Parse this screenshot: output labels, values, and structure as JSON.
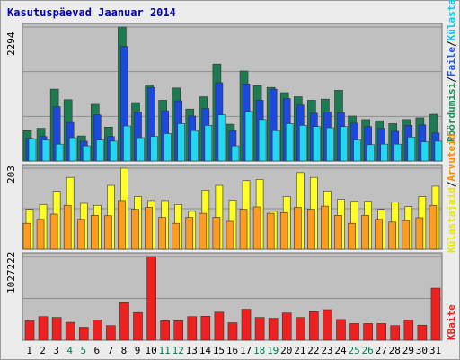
{
  "title": "Kasutuspäevad Jaanuar 2014",
  "panels": {
    "top_max": "2294",
    "mid_max": "203",
    "bot_max": "1027222"
  },
  "legend": {
    "top": [
      {
        "label": "Pöördumisi",
        "color": "#1e8e5a"
      },
      {
        "label": "/",
        "color": "#000000"
      },
      {
        "label": "Faile",
        "color": "#2255dd"
      },
      {
        "label": "/",
        "color": "#000000"
      },
      {
        "label": "Külastajaid",
        "color": "#00ccee"
      }
    ],
    "mid": [
      {
        "label": "Külastajaid",
        "color": "#e6e600"
      },
      {
        "label": "/",
        "color": "#000000"
      },
      {
        "label": "Arvuteid",
        "color": "#ff8800"
      }
    ],
    "bot": [
      {
        "label": "KBaite",
        "color": "#ee2222"
      }
    ]
  },
  "colors": {
    "hits": "#1e7a50",
    "files": "#1c48e0",
    "pages": "#22d8f0",
    "visits": "#ffff22",
    "sites": "#ff9b1e",
    "kbytes": "#ee2020",
    "panel_bg": "#c0c0c0",
    "grid": "#8e8e8e",
    "weekend_label": "#007a55"
  },
  "chart_data": {
    "type": "bar",
    "title": "Kasutuspäevad Jaanuar 2014",
    "categories": [
      "1",
      "2",
      "3",
      "4",
      "5",
      "6",
      "7",
      "8",
      "9",
      "10",
      "11",
      "12",
      "13",
      "14",
      "15",
      "16",
      "17",
      "18",
      "19",
      "20",
      "21",
      "22",
      "23",
      "24",
      "25",
      "26",
      "27",
      "28",
      "29",
      "30",
      "31"
    ],
    "weekend_days": [
      "4",
      "5",
      "11",
      "12",
      "18",
      "19",
      "25",
      "26"
    ],
    "panels": [
      {
        "name": "top",
        "ymax": 2294,
        "series": [
          {
            "name": "Pöördumisi",
            "values": [
              520,
              560,
              1230,
              1050,
              430,
              970,
              580,
              2294,
              1000,
              1300,
              1040,
              1250,
              890,
              1100,
              1660,
              630,
              1540,
              1290,
              1260,
              1170,
              1100,
              1040,
              1060,
              1210,
              770,
              710,
              690,
              640,
              710,
              740,
              800
            ]
          },
          {
            "name": "Faile",
            "values": [
              390,
              420,
              930,
              660,
              340,
              790,
              420,
              1960,
              840,
              1260,
              860,
              1030,
              770,
              900,
              1340,
              520,
              1320,
              1040,
              1230,
              1070,
              960,
              820,
              840,
              830,
              650,
              590,
              560,
              510,
              610,
              620,
              480
            ]
          },
          {
            "name": "Külastajaid",
            "values": [
              380,
              360,
              290,
              400,
              260,
              360,
              340,
              600,
              400,
              420,
              470,
              640,
              520,
              610,
              790,
              260,
              850,
              710,
              520,
              640,
              610,
              590,
              570,
              590,
              360,
              280,
              290,
              290,
              410,
              330,
              340
            ]
          }
        ]
      },
      {
        "name": "mid",
        "ymax": 203,
        "series": [
          {
            "name": "Külastajaid",
            "values": [
              100,
              112,
              145,
              180,
              115,
              110,
              160,
              203,
              132,
              122,
              122,
              112,
              95,
              148,
              160,
              123,
              172,
              175,
              95,
              132,
              192,
              180,
              146,
              125,
              120,
              120,
              100,
              118,
              107,
              132,
              158
            ]
          },
          {
            "name": "Arvuteid",
            "values": [
              65,
              75,
              88,
              110,
              75,
              85,
              84,
              122,
              100,
              105,
              80,
              65,
              80,
              90,
              80,
              70,
              100,
              106,
              90,
              92,
              105,
              100,
              108,
              85,
              65,
              85,
              75,
              68,
              72,
              79,
              110
            ]
          }
        ]
      },
      {
        "name": "bot",
        "ymax": 1027222,
        "series": [
          {
            "name": "KBaite",
            "values": [
              238000,
              290000,
              280000,
              220000,
              160000,
              250000,
              180000,
              460000,
              340000,
              1027222,
              240000,
              240000,
              290000,
              295000,
              345000,
              215000,
              380000,
              280000,
              270000,
              335000,
              280000,
              350000,
              375000,
              255000,
              205000,
              205000,
              205000,
              180000,
              250000,
              185000,
              640000
            ]
          }
        ]
      }
    ]
  }
}
